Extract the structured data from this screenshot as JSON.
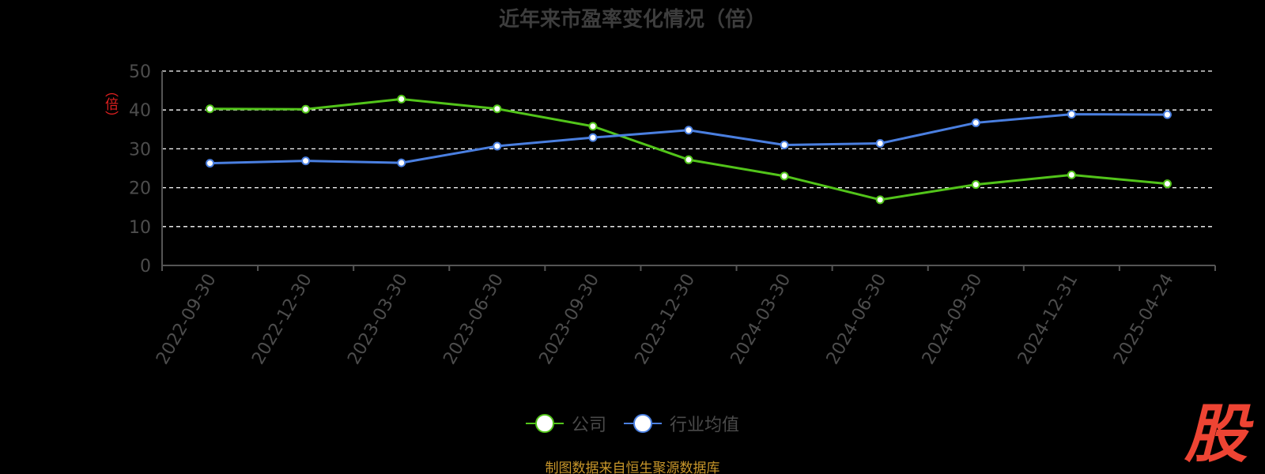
{
  "title": "近年来市盈率变化情况（倍）",
  "y_unit": "（倍）",
  "source": "制图数据来自恒生聚源数据库",
  "logo_text": "股",
  "colors": {
    "company": "#52c41a",
    "industry": "#4a7fe0",
    "axis": "#555555",
    "grid": "#ffffff",
    "tick_text": "#4d4d4d"
  },
  "chart_data": {
    "type": "line",
    "title": "近年来市盈率变化情况（倍）",
    "ylabel": "（倍）",
    "xlabel": "",
    "ylim": [
      0,
      50
    ],
    "yticks": [
      0,
      10,
      20,
      30,
      40,
      50
    ],
    "grid": true,
    "legend_position": "bottom-center",
    "categories": [
      "2022-09-30",
      "2022-12-30",
      "2023-03-30",
      "2023-06-30",
      "2023-09-30",
      "2023-12-30",
      "2024-03-30",
      "2024-06-30",
      "2024-09-30",
      "2024-12-31",
      "2025-04-24"
    ],
    "series": [
      {
        "name": "公司",
        "color": "#52c41a",
        "values": [
          40.3,
          40.2,
          42.8,
          40.3,
          35.8,
          27.2,
          23.0,
          16.9,
          20.8,
          23.3,
          21.0
        ]
      },
      {
        "name": "行业均值",
        "color": "#4a7fe0",
        "values": [
          26.3,
          26.9,
          26.4,
          30.7,
          32.9,
          34.8,
          31.0,
          31.4,
          36.7,
          38.9,
          38.8
        ]
      }
    ]
  }
}
